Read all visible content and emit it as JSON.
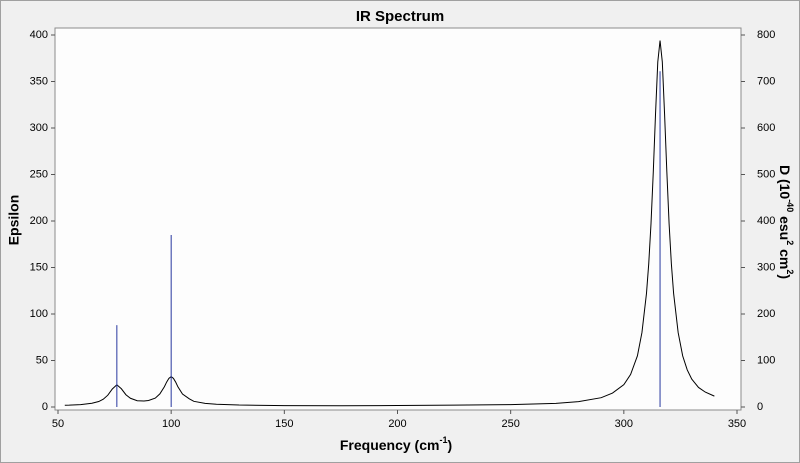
{
  "chart_data": {
    "type": "spectrum",
    "title": "IR Spectrum",
    "x_label": [
      "Frequency (cm",
      "-1",
      ")"
    ],
    "y_label": "Epsilon",
    "y2_label": [
      "D (10",
      "-40",
      " esu",
      "2",
      " cm",
      "2",
      ")"
    ],
    "xlim": [
      50,
      350
    ],
    "xticks": [
      50,
      100,
      150,
      200,
      250,
      300,
      350
    ],
    "ylim": [
      0,
      400
    ],
    "yticks": [
      0,
      50,
      100,
      150,
      200,
      250,
      300,
      350,
      400
    ],
    "y2lim": [
      0,
      800
    ],
    "y2ticks": [
      0,
      100,
      200,
      300,
      400,
      500,
      600,
      700,
      800
    ],
    "series": [
      {
        "name": "Epsilon",
        "color": "#000000",
        "style": "line",
        "x": [
          53,
          55,
          60,
          65,
          68,
          70,
          72,
          74,
          76,
          78,
          80,
          82,
          85,
          88,
          90,
          93,
          95,
          97,
          98,
          99,
          100,
          101,
          102,
          103,
          105,
          108,
          110,
          115,
          120,
          130,
          150,
          175,
          200,
          225,
          250,
          270,
          280,
          290,
          295,
          300,
          303,
          306,
          308,
          310,
          311,
          312,
          313,
          314,
          315,
          316,
          317,
          318,
          319,
          320,
          321,
          322,
          324,
          326,
          328,
          330,
          333,
          336,
          340
        ],
        "values": [
          1.9,
          2.0,
          2.6,
          4.0,
          5.9,
          8.4,
          12.7,
          19.4,
          23.9,
          19.6,
          13.2,
          9.4,
          6.7,
          6.4,
          7.0,
          9.6,
          14.1,
          21.8,
          26.8,
          30.8,
          32.6,
          30.8,
          26.7,
          21.6,
          13.9,
          8.8,
          6.1,
          3.9,
          3.0,
          2.1,
          1.5,
          1.4,
          1.6,
          2.0,
          2.6,
          3.9,
          5.8,
          10,
          15,
          24,
          35,
          55,
          80,
          122,
          154,
          197,
          252,
          315,
          371,
          394,
          371,
          315,
          253,
          197,
          154,
          122,
          80,
          55,
          40,
          30,
          21,
          16,
          11.7
        ]
      },
      {
        "name": "D",
        "color": "#2838a0",
        "style": "stick",
        "axis": "y2",
        "x": [
          76,
          100,
          316
        ],
        "values": [
          176,
          370,
          722
        ]
      }
    ]
  }
}
